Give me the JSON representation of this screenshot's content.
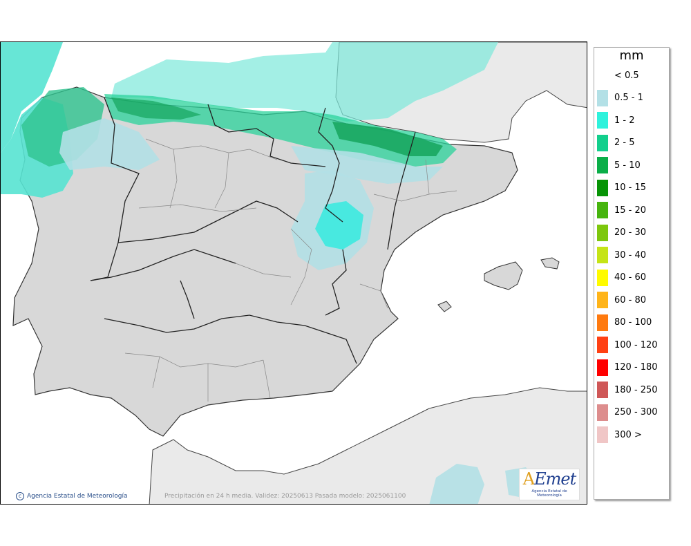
{
  "legend": {
    "unit": "mm",
    "entries": [
      {
        "label": "< 0.5",
        "color": "#ffffff"
      },
      {
        "label": "0.5 - 1",
        "color": "#b3e0e6"
      },
      {
        "label": "1 - 2",
        "color": "#2ef2dc"
      },
      {
        "label": "2 - 5",
        "color": "#12cf8c"
      },
      {
        "label": "5 - 10",
        "color": "#0aae48"
      },
      {
        "label": "10 - 15",
        "color": "#079406"
      },
      {
        "label": "15 - 20",
        "color": "#46b40e"
      },
      {
        "label": "20 - 30",
        "color": "#7dc70d"
      },
      {
        "label": "30 - 40",
        "color": "#c5e416"
      },
      {
        "label": "40 - 60",
        "color": "#fffb00"
      },
      {
        "label": "60 - 80",
        "color": "#ffb419"
      },
      {
        "label": "80 - 100",
        "color": "#ff7a0f"
      },
      {
        "label": "100 - 120",
        "color": "#ff4013"
      },
      {
        "label": "120 - 180",
        "color": "#ff0000"
      },
      {
        "label": "180 - 250",
        "color": "#cf5757"
      },
      {
        "label": "250 - 300",
        "color": "#dd8d8d"
      },
      {
        "label": "300 >",
        "color": "#f0c6c6"
      }
    ]
  },
  "footer": {
    "credit": "Agencia Estatal de Meteorología",
    "validity": "Precipitación en 24 h media. Validez: 20250613 Pasada modelo: 2025061100"
  },
  "logo": {
    "brand_a": "A",
    "brand_rest": "Emet",
    "subtitle": "Agencia Estatal de Meteorología"
  }
}
